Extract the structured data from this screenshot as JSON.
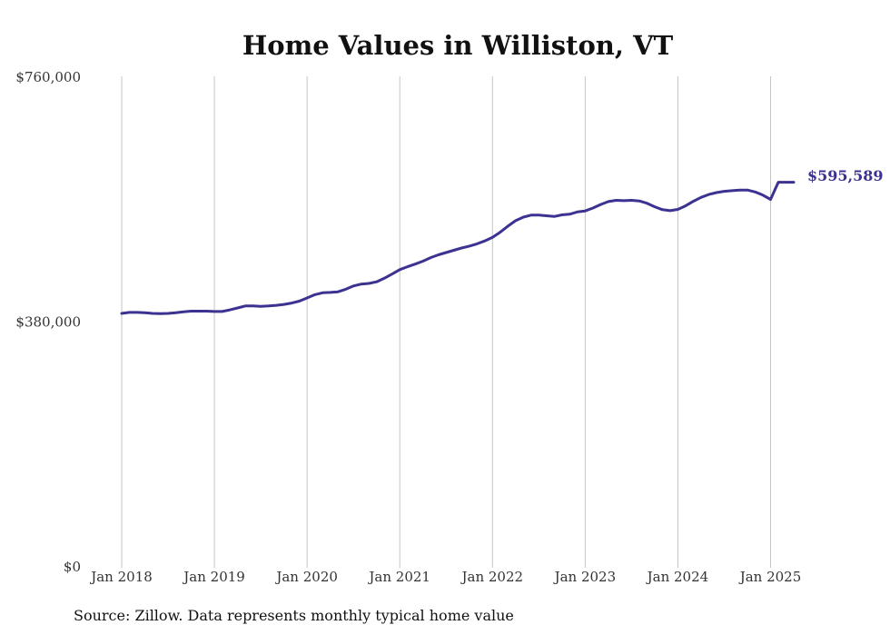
{
  "chart_data": {
    "type": "line",
    "title": "Home Values in Williston, VT",
    "source": "Source: Zillow. Data represents monthly typical home value",
    "y_ticks": [
      {
        "value": 760000,
        "label": "$760,000"
      },
      {
        "value": 380000,
        "label": "$380,000"
      },
      {
        "value": 0,
        "label": "$0"
      }
    ],
    "ylim": [
      0,
      760000
    ],
    "x_ticks": [
      {
        "value": "2018-01",
        "label": "Jan 2018"
      },
      {
        "value": "2019-01",
        "label": "Jan 2019"
      },
      {
        "value": "2020-01",
        "label": "Jan 2020"
      },
      {
        "value": "2021-01",
        "label": "Jan 2021"
      },
      {
        "value": "2022-01",
        "label": "Jan 2022"
      },
      {
        "value": "2023-01",
        "label": "Jan 2023"
      },
      {
        "value": "2024-01",
        "label": "Jan 2024"
      },
      {
        "value": "2025-01",
        "label": "Jan 2025"
      }
    ],
    "xlim": [
      "2018-01",
      "2025-04"
    ],
    "grid": "vertical",
    "line_color": "#3b3291",
    "end_label": "$595,589",
    "series": [
      {
        "x": [
          "2018-01",
          "2018-02",
          "2018-03",
          "2018-04",
          "2018-05",
          "2018-06",
          "2018-07",
          "2018-08",
          "2018-09",
          "2018-10",
          "2018-11",
          "2018-12",
          "2019-01",
          "2019-02",
          "2019-03",
          "2019-04",
          "2019-05",
          "2019-06",
          "2019-07",
          "2019-08",
          "2019-09",
          "2019-10",
          "2019-11",
          "2019-12",
          "2020-01",
          "2020-02",
          "2020-03",
          "2020-04",
          "2020-05",
          "2020-06",
          "2020-07",
          "2020-08",
          "2020-09",
          "2020-10",
          "2020-11",
          "2020-12",
          "2021-01",
          "2021-02",
          "2021-03",
          "2021-04",
          "2021-05",
          "2021-06",
          "2021-07",
          "2021-08",
          "2021-09",
          "2021-10",
          "2021-11",
          "2021-12",
          "2022-01",
          "2022-02",
          "2022-03",
          "2022-04",
          "2022-05",
          "2022-06",
          "2022-07",
          "2022-08",
          "2022-09",
          "2022-10",
          "2022-11",
          "2022-12",
          "2023-01",
          "2023-02",
          "2023-03",
          "2023-04",
          "2023-05",
          "2023-06",
          "2023-07",
          "2023-08",
          "2023-09",
          "2023-10",
          "2023-11",
          "2023-12",
          "2024-01",
          "2024-02",
          "2024-03",
          "2024-04",
          "2024-05",
          "2024-06",
          "2024-07",
          "2024-08",
          "2024-09",
          "2024-10",
          "2024-11",
          "2024-12",
          "2025-01",
          "2025-02",
          "2025-03",
          "2025-04"
        ],
        "values": [
          392000,
          393500,
          393500,
          393000,
          392000,
          391500,
          392000,
          393000,
          394500,
          395500,
          395500,
          395500,
          395000,
          395000,
          397500,
          400500,
          403500,
          403500,
          403000,
          403500,
          404500,
          406000,
          408000,
          411000,
          416000,
          421000,
          424000,
          424500,
          425500,
          429500,
          434500,
          437500,
          438500,
          441000,
          446500,
          453000,
          460000,
          464500,
          468500,
          473000,
          478500,
          483000,
          486500,
          490000,
          493500,
          496500,
          500000,
          504500,
          510000,
          518000,
          527500,
          536000,
          541500,
          544500,
          544500,
          543500,
          542500,
          545000,
          546000,
          549500,
          551000,
          555500,
          561000,
          565500,
          567500,
          567000,
          567500,
          566500,
          563000,
          557500,
          553000,
          551500,
          553500,
          559000,
          566000,
          572000,
          576500,
          579500,
          581500,
          582500,
          583500,
          583500,
          580500,
          575500,
          569000,
          595589,
          595589,
          595589
        ]
      }
    ]
  }
}
